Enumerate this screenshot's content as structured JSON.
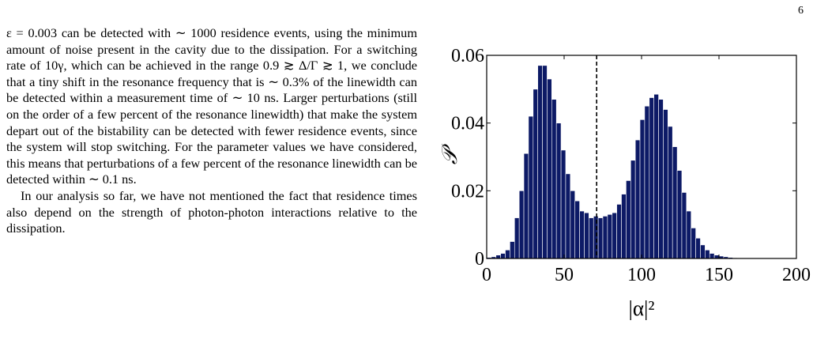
{
  "page": {
    "number": "6"
  },
  "text": {
    "paragraphs": [
      "ε = 0.003 can be detected with ∼ 1000 residence events, using the minimum amount of noise present in the cavity due to the dissipation. For a switching rate of 10γ, which can be achieved in the range 0.9 ≳ Δ/Γ ≳ 1, we conclude that a tiny shift in the resonance frequency that is ∼ 0.3% of the linewidth can be detected within a measurement time of ∼ 10 ns. Larger perturbations (still on the order of a few percent of the resonance linewidth) that make the system depart out of the bistability can be detected with fewer residence events, since the system will stop switching. For the parameter values we have considered, this means that perturbations of a few percent of the resonance linewidth can be detected within ∼ 0.1 ns.",
      "In our analysis so far, we have not mentioned the fact that residence times also depend on the strength of photon-photon interactions relative to the dissipation."
    ]
  },
  "chart_data": {
    "type": "bar",
    "xlabel": "|α|²",
    "ylabel": "𝒫",
    "xlim": [
      0,
      200
    ],
    "ylim": [
      0,
      0.06
    ],
    "xticks": [
      "0",
      "50",
      "100",
      "150",
      "200"
    ],
    "yticks": [
      "0",
      "0.02",
      "0.04",
      "0.06"
    ],
    "bin_width": 3,
    "x": [
      1.5,
      4.5,
      7.5,
      10.5,
      13.5,
      16.5,
      19.5,
      22.5,
      25.5,
      28.5,
      31.5,
      34.5,
      37.5,
      40.5,
      43.5,
      46.5,
      49.5,
      52.5,
      55.5,
      58.5,
      61.5,
      64.5,
      67.5,
      70.5,
      73.5,
      76.5,
      79.5,
      82.5,
      85.5,
      88.5,
      91.5,
      94.5,
      97.5,
      100.5,
      103.5,
      106.5,
      109.5,
      112.5,
      115.5,
      118.5,
      121.5,
      124.5,
      127.5,
      130.5,
      133.5,
      136.5,
      139.5,
      142.5,
      145.5,
      148.5,
      151.5,
      154.5,
      157.5,
      160.5,
      163.5,
      166.5,
      169.5,
      172.5,
      175.5,
      178.5,
      181.5,
      184.5,
      187.5,
      190.5,
      193.5,
      196.5
    ],
    "values": [
      0.0003,
      0.0005,
      0.001,
      0.0015,
      0.0025,
      0.005,
      0.012,
      0.02,
      0.031,
      0.042,
      0.05,
      0.057,
      0.057,
      0.053,
      0.047,
      0.04,
      0.032,
      0.025,
      0.02,
      0.017,
      0.014,
      0.0135,
      0.012,
      0.0125,
      0.012,
      0.0125,
      0.013,
      0.0135,
      0.016,
      0.019,
      0.023,
      0.029,
      0.035,
      0.041,
      0.045,
      0.0475,
      0.0485,
      0.047,
      0.044,
      0.039,
      0.033,
      0.026,
      0.0195,
      0.014,
      0.009,
      0.006,
      0.004,
      0.0025,
      0.0015,
      0.001,
      0.0007,
      0.0005,
      0.0003,
      0.0002,
      0.0001,
      0.0001,
      0.0001,
      0.0001,
      0.0001,
      0.0001,
      0.0001,
      0.0001,
      0.0001,
      0.0001,
      0.0001,
      0.0001
    ],
    "threshold_x": 71,
    "bar_color": "#0d1a66",
    "grid": false
  }
}
